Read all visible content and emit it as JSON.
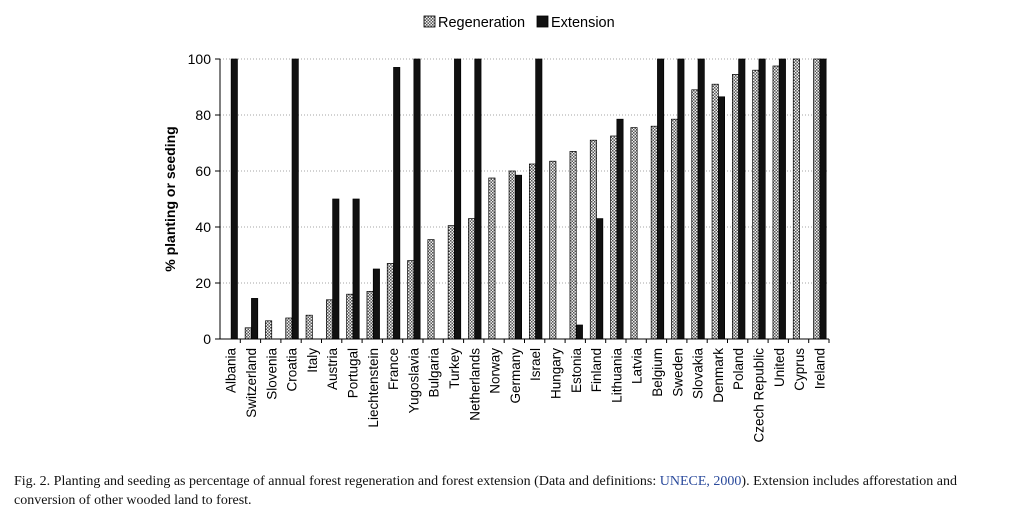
{
  "chart_data": {
    "type": "bar",
    "ylabel": "% planting or seeding",
    "xlabel": "",
    "ylim": [
      0,
      100
    ],
    "yticks": [
      0,
      20,
      40,
      60,
      80,
      100
    ],
    "grid": "horizontal dotted",
    "legend_position": "top",
    "categories": [
      "Albania",
      "Switzerland",
      "Slovenia",
      "Croatia",
      "Italy",
      "Austria",
      "Portugal",
      "Liechtenstein",
      "France",
      "Yugoslavia",
      "Bulgaria",
      "Turkey",
      "Netherlands",
      "Norway",
      "Germany",
      "Israel",
      "Hungary",
      "Estonia",
      "Finland",
      "Lithuania",
      "Latvia",
      "Belgium",
      "Sweden",
      "Slovakia",
      "Denmark",
      "Poland",
      "Czech Republic",
      "United",
      "Cyprus",
      "Ireland"
    ],
    "series": [
      {
        "name": "Regeneration",
        "pattern": "hatched",
        "values": [
          0,
          4,
          6.5,
          7.5,
          8.5,
          14,
          16,
          17,
          27,
          28,
          35.5,
          40.5,
          43,
          57.5,
          60,
          62.5,
          63.5,
          67,
          71,
          72.5,
          75.5,
          76,
          78.5,
          89,
          91,
          94.5,
          96,
          97.5,
          100,
          100
        ]
      },
      {
        "name": "Extension",
        "pattern": "solid",
        "values": [
          100,
          14.5,
          0,
          100,
          0,
          50,
          50,
          25,
          97,
          100,
          0,
          100,
          100,
          0,
          58.5,
          100,
          0,
          5,
          43,
          78.5,
          0,
          100,
          100,
          100,
          86.5,
          100,
          100,
          100,
          0,
          100
        ]
      }
    ]
  },
  "caption": {
    "prefix": "Fig. 2. Planting and seeding as percentage of annual forest regeneration and forest extension (Data and definitions: ",
    "ref": "UNECE, 2000",
    "suffix": "). Extension includes afforestation and conversion of other wooded land to forest."
  },
  "colors": {
    "extension": "#111111",
    "regeneration_light": "#f2f2f2",
    "regeneration_dark": "#555555"
  }
}
